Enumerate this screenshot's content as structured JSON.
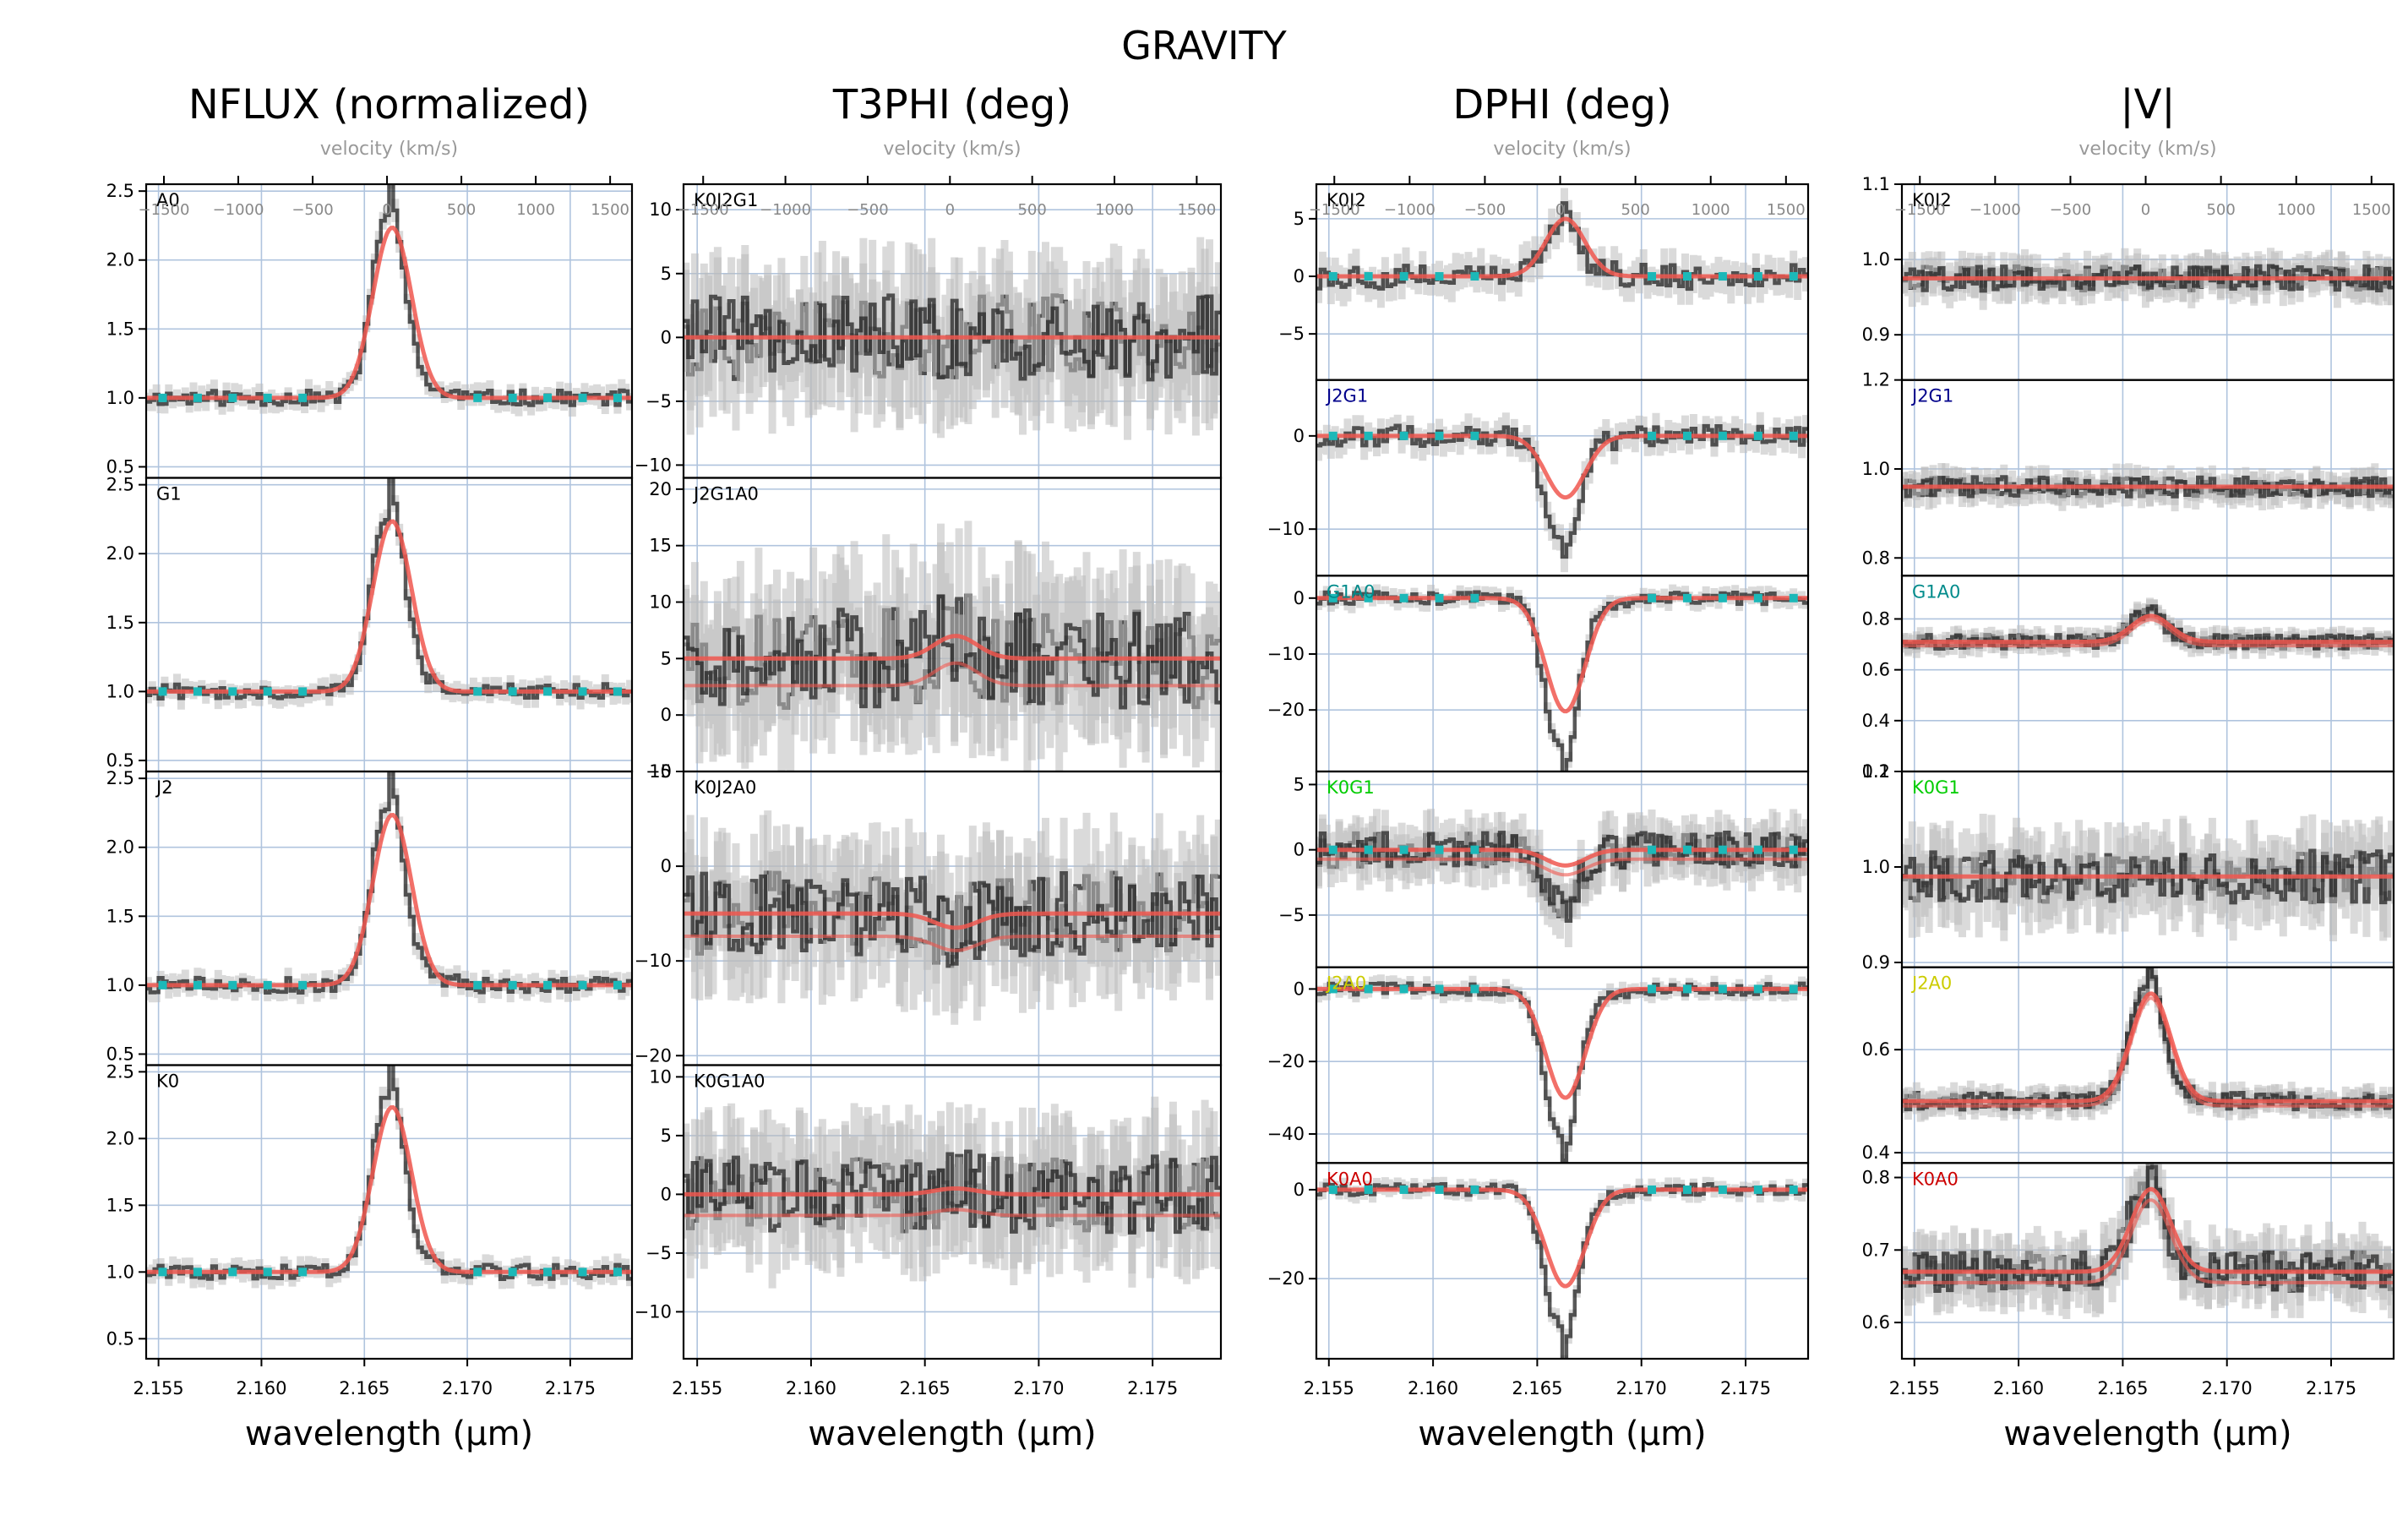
{
  "figure": {
    "suptitle": "GRAVITY",
    "xlabel": "wavelength (μm)",
    "velocity_label": "velocity (km/s)",
    "colors": {
      "observed": "#222222",
      "error_band": "#bbbbbb",
      "model": "#f0574f",
      "continuum_marker": "#1cb8b8",
      "grid": "#b0c4de"
    }
  },
  "chart_data": {
    "type": "line",
    "wavelength_range": [
      2.1544,
      2.178
    ],
    "line_center_um": 2.1661,
    "x_ticks": [
      2.155,
      2.16,
      2.165,
      2.17,
      2.175
    ],
    "x_tick_labels": [
      "2.155",
      "2.160",
      "2.165",
      "2.170",
      "2.175"
    ],
    "velocity_ticks": [
      -1500,
      -1000,
      -500,
      0,
      500,
      1000,
      1500
    ],
    "columns": [
      {
        "title": "NFLUX (normalized)",
        "panels": [
          {
            "label": "A0",
            "label_color": "#000000",
            "ylim": [
              0.42,
              2.55
            ],
            "yticks": [
              0.5,
              1.0,
              1.5,
              2.0,
              2.5
            ],
            "ytick_labels": [
              "0.5",
              "1.0",
              "1.5",
              "2.0",
              "2.5"
            ],
            "baseline": 1.0,
            "feature": 1.3,
            "noise": 0.05,
            "model_scale": 0.95,
            "dual": false,
            "marker_y": 1.0
          },
          {
            "label": "G1",
            "label_color": "#000000",
            "ylim": [
              0.42,
              2.55
            ],
            "yticks": [
              0.5,
              1.0,
              1.5,
              2.0,
              2.5
            ],
            "ytick_labels": [
              "0.5",
              "1.0",
              "1.5",
              "2.0",
              "2.5"
            ],
            "baseline": 1.0,
            "feature": 1.3,
            "noise": 0.05,
            "model_scale": 0.95,
            "dual": false,
            "marker_y": 1.0
          },
          {
            "label": "J2",
            "label_color": "#000000",
            "ylim": [
              0.42,
              2.55
            ],
            "yticks": [
              0.5,
              1.0,
              1.5,
              2.0,
              2.5
            ],
            "ytick_labels": [
              "0.5",
              "1.0",
              "1.5",
              "2.0",
              "2.5"
            ],
            "baseline": 1.0,
            "feature": 1.3,
            "noise": 0.05,
            "model_scale": 0.95,
            "dual": false,
            "marker_y": 1.0
          },
          {
            "label": "K0",
            "label_color": "#000000",
            "ylim": [
              0.35,
              2.55
            ],
            "yticks": [
              0.5,
              1.0,
              1.5,
              2.0,
              2.5
            ],
            "ytick_labels": [
              "0.5",
              "1.0",
              "1.5",
              "2.0",
              "2.5"
            ],
            "baseline": 1.0,
            "feature": 1.3,
            "noise": 0.05,
            "model_scale": 0.95,
            "dual": false,
            "marker_y": 1.0
          }
        ]
      },
      {
        "title": "T3PHI (deg)",
        "panels": [
          {
            "label": "K0J2G1",
            "label_color": "#000000",
            "ylim": [
              -11,
              12
            ],
            "yticks": [
              -10,
              -5,
              0,
              5,
              10
            ],
            "ytick_labels": [
              "−10",
              "−5",
              "0",
              "5",
              "10"
            ],
            "baseline": 0,
            "feature": 0,
            "noise": 3.0,
            "model_scale": 0,
            "dual": true,
            "marker_y": null
          },
          {
            "label": "J2G1A0",
            "label_color": "#000000",
            "ylim": [
              -5,
              21
            ],
            "yticks": [
              -5,
              0,
              5,
              10,
              15,
              20
            ],
            "ytick_labels": [
              "−5",
              "0",
              "5",
              "10",
              "15",
              "20"
            ],
            "baseline": 5,
            "feature": 2,
            "noise": 4.0,
            "model_scale": 1,
            "dual": true,
            "marker_y": null
          },
          {
            "label": "K0J2A0",
            "label_color": "#000000",
            "ylim": [
              -21,
              10
            ],
            "yticks": [
              -20,
              -10,
              0,
              10
            ],
            "ytick_labels": [
              "−20",
              "−10",
              "0",
              "10"
            ],
            "baseline": -5,
            "feature": -1.5,
            "noise": 4.0,
            "model_scale": 1,
            "dual": true,
            "marker_y": null
          },
          {
            "label": "K0G1A0",
            "label_color": "#000000",
            "ylim": [
              -14,
              11
            ],
            "yticks": [
              -10,
              -5,
              0,
              5,
              10
            ],
            "ytick_labels": [
              "−10",
              "−5",
              "0",
              "5",
              "10"
            ],
            "baseline": 0,
            "feature": 0.5,
            "noise": 3.0,
            "model_scale": 1,
            "dual": true,
            "marker_y": null
          }
        ]
      },
      {
        "title": "DPHI (deg)",
        "panels": [
          {
            "label": "K0J2",
            "label_color": "#000000",
            "ylim": [
              -9,
              8
            ],
            "yticks": [
              -5,
              0,
              5
            ],
            "ytick_labels": [
              "−5",
              "0",
              "5"
            ],
            "baseline": 0,
            "feature": 5,
            "noise": 1.0,
            "model_scale": 1,
            "dual": false,
            "marker_y": 0
          },
          {
            "label": "J2G1",
            "label_color": "#00008b",
            "ylim": [
              -15,
              6
            ],
            "yticks": [
              -10,
              0
            ],
            "ytick_labels": [
              "−10",
              "0"
            ],
            "baseline": 0,
            "feature": -11,
            "noise": 1.0,
            "model_scale": 0.6,
            "dual": false,
            "marker_y": 0
          },
          {
            "label": "G1A0",
            "label_color": "#008b8b",
            "ylim": [
              -31,
              4
            ],
            "yticks": [
              -20,
              -10,
              0
            ],
            "ytick_labels": [
              "−20",
              "−10",
              "0"
            ],
            "baseline": 0,
            "feature": -27,
            "noise": 1.0,
            "model_scale": 0.75,
            "dual": false,
            "marker_y": 0
          },
          {
            "label": "K0G1",
            "label_color": "#00cc00",
            "ylim": [
              -9,
              6
            ],
            "yticks": [
              -5,
              0,
              5
            ],
            "ytick_labels": [
              "−5",
              "0",
              "5"
            ],
            "baseline": 0,
            "feature": -4,
            "noise": 1.2,
            "model_scale": 0.3,
            "dual": true,
            "marker_y": 0
          },
          {
            "label": "J2A0",
            "label_color": "#cccc00",
            "ylim": [
              -48,
              6
            ],
            "yticks": [
              -40,
              -20,
              0
            ],
            "ytick_labels": [
              "−40",
              "−20",
              "0"
            ],
            "baseline": 0,
            "feature": -40,
            "noise": 1.5,
            "model_scale": 0.75,
            "dual": false,
            "marker_y": 0
          },
          {
            "label": "K0A0",
            "label_color": "#cc0000",
            "ylim": [
              -38,
              6
            ],
            "yticks": [
              -20,
              0
            ],
            "ytick_labels": [
              "−20",
              "0"
            ],
            "baseline": 0,
            "feature": -31,
            "noise": 1.2,
            "model_scale": 0.7,
            "dual": false,
            "marker_y": 0
          }
        ]
      },
      {
        "title": "|V|",
        "panels": [
          {
            "label": "K0J2",
            "label_color": "#000000",
            "ylim": [
              0.84,
              1.1
            ],
            "yticks": [
              0.9,
              1.0,
              1.1
            ],
            "ytick_labels": [
              "0.9",
              "1.0",
              "1.1"
            ],
            "baseline": 0.975,
            "feature": 0,
            "noise": 0.015,
            "model_scale": 0,
            "dual": true,
            "marker_y": null
          },
          {
            "label": "J2G1",
            "label_color": "#00008b",
            "ylim": [
              0.76,
              1.2
            ],
            "yticks": [
              0.8,
              1.0,
              1.2
            ],
            "ytick_labels": [
              "0.8",
              "1.0",
              "1.2"
            ],
            "baseline": 0.96,
            "feature": 0,
            "noise": 0.02,
            "model_scale": 0,
            "dual": true,
            "marker_y": null
          },
          {
            "label": "G1A0",
            "label_color": "#008b8b",
            "ylim": [
              0.2,
              0.97
            ],
            "yticks": [
              0.2,
              0.4,
              0.6,
              0.8
            ],
            "ytick_labels": [
              "0.2",
              "0.4",
              "0.6",
              "0.8"
            ],
            "baseline": 0.71,
            "feature": 0.12,
            "noise": 0.025,
            "model_scale": 0.85,
            "dual": true,
            "marker_y": null
          },
          {
            "label": "K0G1",
            "label_color": "#00cc00",
            "ylim": [
              0.895,
              1.1
            ],
            "yticks": [
              0.9,
              1.0,
              1.1
            ],
            "ytick_labels": [
              "0.9",
              "1.0",
              "1.1"
            ],
            "baseline": 0.99,
            "feature": 0,
            "noise": 0.025,
            "model_scale": 0,
            "dual": true,
            "marker_y": null
          },
          {
            "label": "J2A0",
            "label_color": "#cccc00",
            "ylim": [
              0.38,
              0.76
            ],
            "yticks": [
              0.4,
              0.6
            ],
            "ytick_labels": [
              "0.4",
              "0.6"
            ],
            "baseline": 0.5,
            "feature": 0.22,
            "noise": 0.015,
            "model_scale": 0.95,
            "dual": true,
            "marker_y": null
          },
          {
            "label": "K0A0",
            "label_color": "#cc0000",
            "ylim": [
              0.55,
              0.82
            ],
            "yticks": [
              0.6,
              0.7,
              0.8
            ],
            "ytick_labels": [
              "0.6",
              "0.7",
              "0.8"
            ],
            "baseline": 0.67,
            "feature": 0.12,
            "noise": 0.025,
            "model_scale": 0.95,
            "dual": true,
            "marker_y": null
          }
        ]
      }
    ]
  }
}
